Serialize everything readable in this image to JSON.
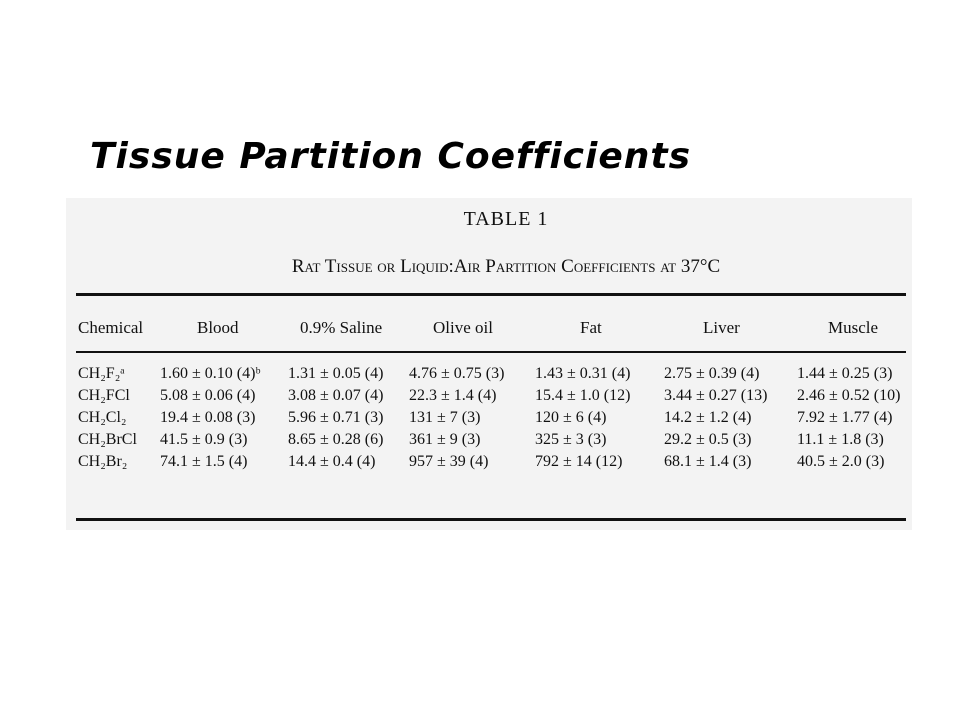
{
  "slide": {
    "title": "Tissue Partition Coefficients"
  },
  "table": {
    "caption": "TABLE 1",
    "title": "Rat Tissue or Liquid:Air Partition Coefficients at 37°C",
    "columns": [
      "Chemical",
      "Blood",
      "0.9% Saline",
      "Olive oil",
      "Fat",
      "Liver",
      "Muscle"
    ],
    "rows": [
      {
        "chemical": "CH₂F₂ᵃ",
        "values": [
          "1.60 ± 0.10 (4)ᵇ",
          "1.31 ± 0.05 (4)",
          "4.76 ± 0.75 (3)",
          "1.43 ± 0.31 (4)",
          "2.75 ± 0.39 (4)",
          "1.44 ± 0.25 (3)"
        ]
      },
      {
        "chemical": "CH₂FCl",
        "values": [
          "5.08 ± 0.06 (4)",
          "3.08 ± 0.07 (4)",
          "22.3 ± 1.4 (4)",
          "15.4 ± 1.0 (12)",
          "3.44 ± 0.27 (13)",
          "2.46 ± 0.52 (10)"
        ]
      },
      {
        "chemical": "CH₂Cl₂",
        "values": [
          "19.4 ± 0.08 (3)",
          "5.96 ± 0.71 (3)",
          "131 ± 7 (3)",
          "120 ± 6 (4)",
          "14.2 ± 1.2 (4)",
          "7.92 ± 1.77 (4)"
        ]
      },
      {
        "chemical": "CH₂BrCl",
        "values": [
          "41.5 ± 0.9 (3)",
          "8.65 ± 0.28 (6)",
          "361 ± 9 (3)",
          "325 ± 3 (3)",
          "29.2 ± 0.5 (3)",
          "11.1 ± 1.8 (3)"
        ]
      },
      {
        "chemical": "CH₂Br₂",
        "values": [
          "74.1 ± 1.5 (4)",
          "14.4 ± 0.4 (4)",
          "957 ± 39 (4)",
          "792 ± 14 (12)",
          "68.1 ± 1.4 (3)",
          "40.5 ± 2.0 (3)"
        ]
      }
    ]
  }
}
